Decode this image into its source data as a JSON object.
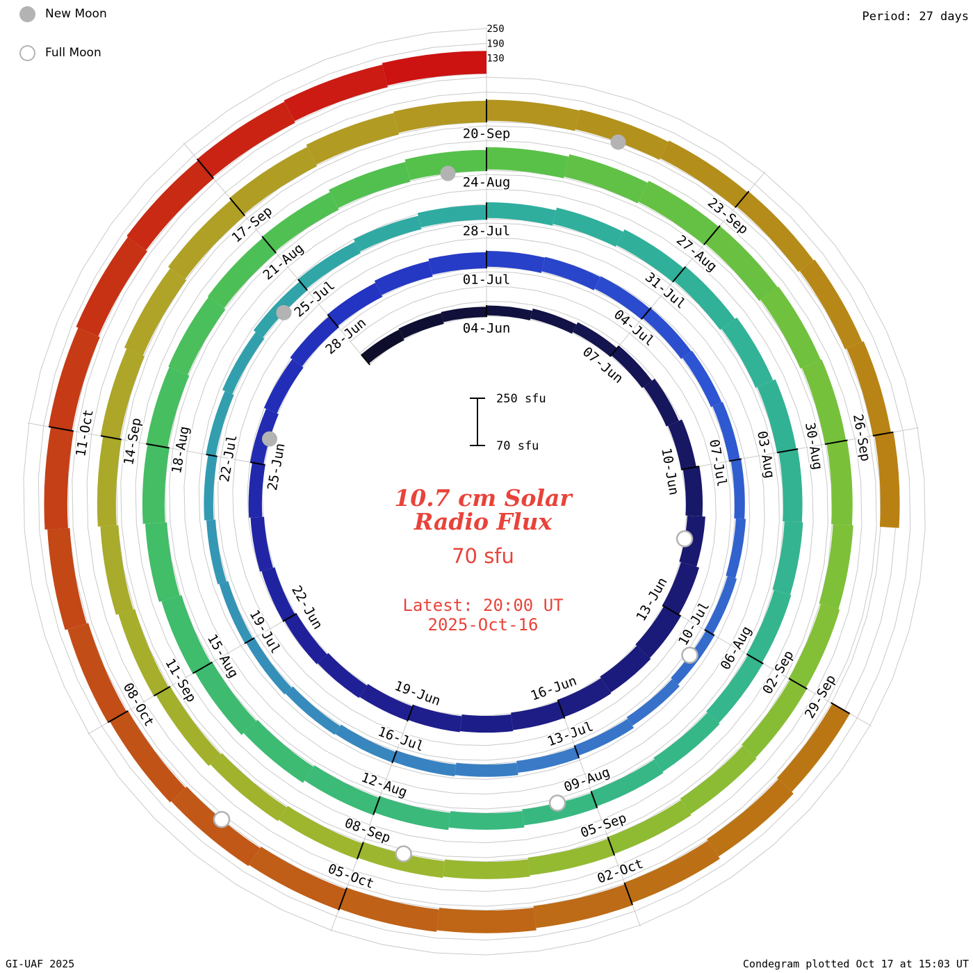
{
  "meta": {
    "period_label": "Period: 27 days",
    "credit": "GI-UAF 2025",
    "footer": "Condegram plotted Oct 17 at 15:03 UT"
  },
  "legend": {
    "new_moon": "New Moon",
    "full_moon": "Full Moon"
  },
  "center": {
    "title_line1": "10.7 cm Solar",
    "title_line2": "Radio Flux",
    "baseline_label": "70 sfu",
    "latest_line1": "Latest: 20:00 UT",
    "latest_line2": "2025-Oct-16",
    "title_color": "#e8433a"
  },
  "scale_bar": {
    "top_label": "250 sfu",
    "bottom_label": "70 sfu"
  },
  "radial_axis_labels": [
    250,
    190,
    130
  ],
  "colors": {
    "accent_red": "#e8433a",
    "moon_gray": "#b3b3b3",
    "grid_gray": "#c9c9c9"
  },
  "chart_data": {
    "type": "bar",
    "layout": "spiral condegram, clockwise from top, one ring = 27 days, bars extend outward from 70 sfu baseline, grid spirals at 70/130/190/250 sfu, radial gridlines every 3 days",
    "title": "10.7 cm Solar Radio Flux",
    "series_name": "F10.7 observed solar radio flux",
    "units": "sfu",
    "rlim": [
      70,
      250
    ],
    "r_ticks": [
      70,
      130,
      190,
      250
    ],
    "period_days": 27,
    "start_date": "2025-06-01",
    "end_date": "2025-10-16",
    "anchor_top_date": "2025-06-04",
    "data_gaps": [
      "2025-09-27",
      "2025-09-28"
    ],
    "values": [
      118,
      115,
      112,
      110,
      112,
      115,
      120,
      126,
      132,
      138,
      143,
      147,
      150,
      148,
      145,
      141,
      138,
      135,
      132,
      130,
      128,
      126,
      125,
      124,
      125,
      127,
      130,
      133,
      135,
      136,
      134,
      130,
      126,
      122,
      118,
      115,
      112,
      110,
      109,
      110,
      112,
      115,
      118,
      120,
      118,
      115,
      112,
      110,
      108,
      107,
      108,
      110,
      114,
      118,
      122,
      126,
      130,
      134,
      138,
      142,
      145,
      147,
      150,
      148,
      145,
      142,
      140,
      138,
      136,
      135,
      137,
      140,
      144,
      148,
      152,
      155,
      158,
      160,
      158,
      155,
      152,
      150,
      153,
      156,
      160,
      163,
      165,
      163,
      160,
      157,
      154,
      152,
      150,
      148,
      146,
      144,
      142,
      140,
      138,
      137,
      136,
      138,
      140,
      143,
      146,
      149,
      152,
      155,
      158,
      160,
      158,
      155,
      152,
      150,
      148,
      146,
      145,
      148,
      null,
      null,
      152,
      155,
      158,
      160,
      162,
      161,
      159,
      157,
      156,
      158,
      161,
      164,
      166,
      168,
      167,
      166,
      164,
      163
    ],
    "tick_labels": [
      [
        0,
        "04-Jun"
      ],
      [
        3,
        "07-Jun"
      ],
      [
        6,
        "10-Jun"
      ],
      [
        9,
        "13-Jun"
      ],
      [
        12,
        "16-Jun"
      ],
      [
        15,
        "19-Jun"
      ],
      [
        18,
        "22-Jun"
      ],
      [
        21,
        "25-Jun"
      ],
      [
        24,
        "28-Jun"
      ],
      [
        27,
        "01-Jul"
      ],
      [
        30,
        "04-Jul"
      ],
      [
        33,
        "07-Jul"
      ],
      [
        36,
        "10-Jul"
      ],
      [
        39,
        "13-Jul"
      ],
      [
        42,
        "16-Jul"
      ],
      [
        45,
        "19-Jul"
      ],
      [
        48,
        "22-Jul"
      ],
      [
        51,
        "25-Jul"
      ],
      [
        54,
        "28-Jul"
      ],
      [
        57,
        "31-Jul"
      ],
      [
        60,
        "03-Aug"
      ],
      [
        63,
        "06-Aug"
      ],
      [
        66,
        "09-Aug"
      ],
      [
        69,
        "12-Aug"
      ],
      [
        72,
        "15-Aug"
      ],
      [
        75,
        "18-Aug"
      ],
      [
        78,
        "21-Aug"
      ],
      [
        81,
        "24-Aug"
      ],
      [
        84,
        "27-Aug"
      ],
      [
        87,
        "30-Aug"
      ],
      [
        90,
        "02-Sep"
      ],
      [
        93,
        "05-Sep"
      ],
      [
        96,
        "08-Sep"
      ],
      [
        99,
        "11-Sep"
      ],
      [
        102,
        "14-Sep"
      ],
      [
        105,
        "17-Sep"
      ],
      [
        108,
        "20-Sep"
      ],
      [
        111,
        "23-Sep"
      ],
      [
        114,
        "26-Sep"
      ],
      [
        117,
        "29-Sep"
      ],
      [
        120,
        "02-Oct"
      ],
      [
        123,
        "05-Oct"
      ],
      [
        126,
        "08-Oct"
      ],
      [
        129,
        "11-Oct"
      ]
    ],
    "moons": {
      "new": [
        [
          "2025-06-25",
          24
        ],
        [
          "2025-07-24",
          53
        ],
        [
          "2025-08-23",
          83
        ],
        [
          "2025-09-21",
          112
        ]
      ],
      "full": [
        [
          "2025-06-11",
          10
        ],
        [
          "2025-07-10",
          39
        ],
        [
          "2025-08-09",
          69
        ],
        [
          "2025-09-07",
          98
        ],
        [
          "2025-10-06",
          127
        ]
      ]
    },
    "color_stops": [
      [
        0,
        "#0e0e2c"
      ],
      [
        10,
        "#191970"
      ],
      [
        20,
        "#20209a"
      ],
      [
        27,
        "#2333c2"
      ],
      [
        34,
        "#2d54d2"
      ],
      [
        42,
        "#3a7ac6"
      ],
      [
        50,
        "#339bb1"
      ],
      [
        57,
        "#2fae9e"
      ],
      [
        66,
        "#35b68c"
      ],
      [
        75,
        "#3fbc6c"
      ],
      [
        83,
        "#55c14b"
      ],
      [
        90,
        "#7ac139"
      ],
      [
        98,
        "#9cb72f"
      ],
      [
        106,
        "#afa428"
      ],
      [
        112,
        "#b3911d"
      ],
      [
        118,
        "#ba7e12"
      ],
      [
        123,
        "#bd6b16"
      ],
      [
        128,
        "#c25317"
      ],
      [
        132,
        "#c63a15"
      ],
      [
        137,
        "#cc1312"
      ]
    ]
  }
}
